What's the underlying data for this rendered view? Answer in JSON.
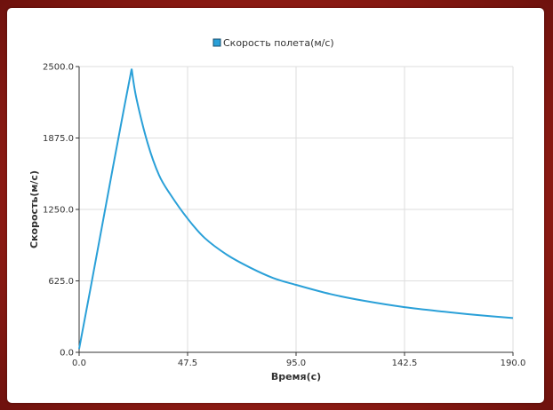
{
  "chart_data": {
    "type": "line",
    "xlabel": "Время(с)",
    "ylabel": "Скорость(м/с)",
    "xlim": [
      0,
      190
    ],
    "ylim": [
      0,
      2500
    ],
    "x_ticks": [
      "0.0",
      "47.5",
      "95.0",
      "142.5",
      "190.0"
    ],
    "y_ticks": [
      "0.0",
      "625.0",
      "1250.0",
      "1875.0",
      "2500.0"
    ],
    "grid": true,
    "legend_position": "top-center",
    "series": [
      {
        "name": "Скорость полета(м/с)",
        "color": "#2aa0d8",
        "x": [
          0,
          5,
          10,
          15,
          20,
          23,
          25,
          30,
          35,
          40,
          47.5,
          55,
          65,
          75,
          85,
          95,
          110,
          125,
          142.5,
          160,
          175,
          190
        ],
        "y": [
          30,
          560,
          1100,
          1640,
          2170,
          2480,
          2230,
          1830,
          1550,
          1380,
          1170,
          1000,
          850,
          740,
          650,
          590,
          510,
          450,
          395,
          355,
          325,
          300
        ]
      }
    ]
  }
}
